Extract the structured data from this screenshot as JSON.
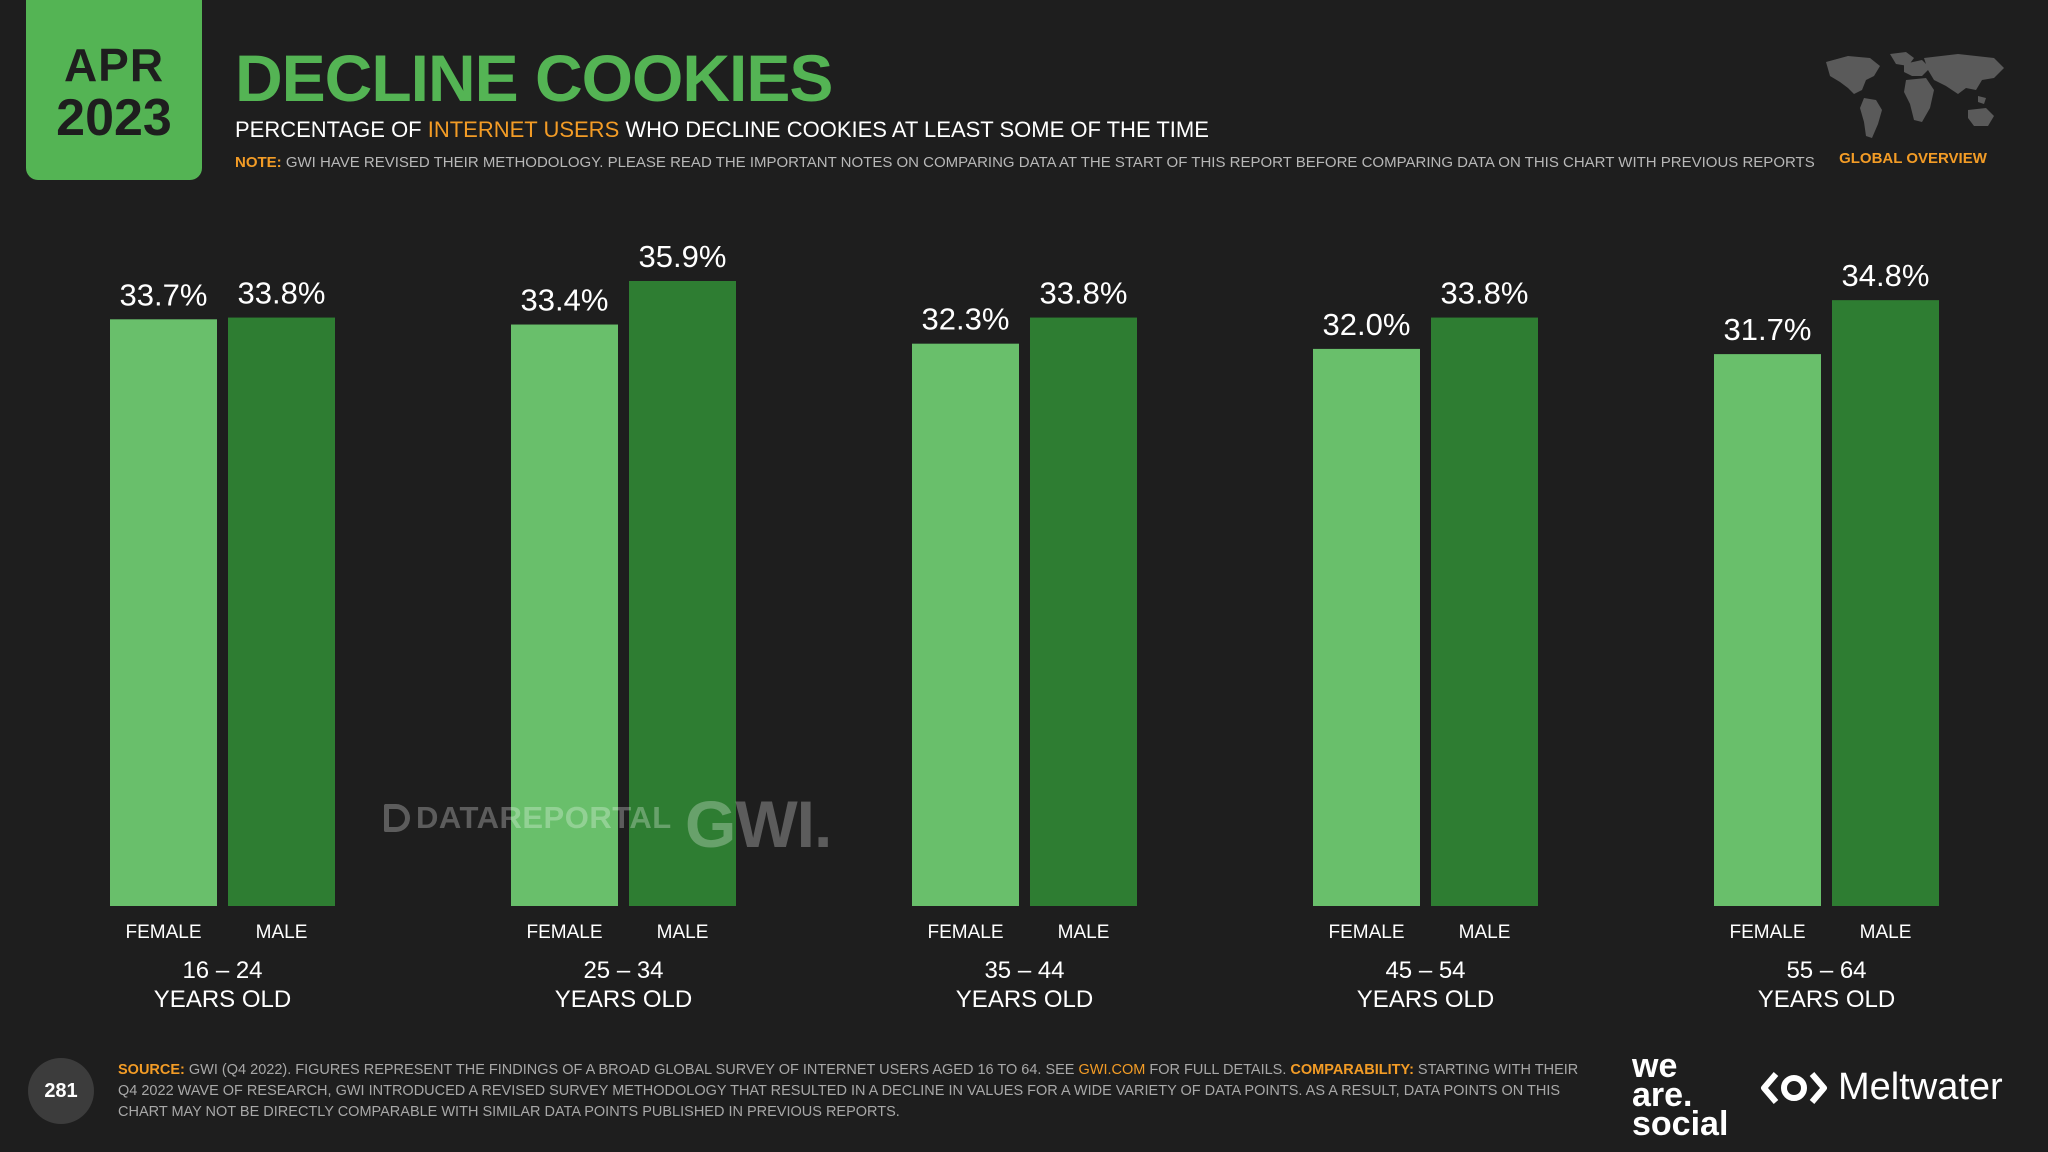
{
  "badge": {
    "month": "APR",
    "year": "2023"
  },
  "header": {
    "title": "DECLINE COOKIES",
    "subtitle_pre": "PERCENTAGE OF ",
    "subtitle_highlight": "INTERNET USERS",
    "subtitle_post": " WHO DECLINE COOKIES AT LEAST SOME OF THE TIME",
    "note_label": "NOTE:",
    "note_text": " GWI HAVE REVISED THEIR METHODOLOGY. PLEASE READ THE IMPORTANT NOTES ON COMPARING DATA AT THE START OF THIS REPORT BEFORE COMPARING DATA ON THIS CHART WITH PREVIOUS REPORTS",
    "section": "GLOBAL OVERVIEW"
  },
  "chart_data": {
    "type": "bar",
    "title": "DECLINE COOKIES",
    "categories": [
      "16 – 24|YEARS OLD",
      "25 – 34|YEARS OLD",
      "35 – 44|YEARS OLD",
      "45 – 54|YEARS OLD",
      "55 – 64|YEARS OLD"
    ],
    "series": [
      {
        "name": "FEMALE",
        "values": [
          33.7,
          33.4,
          32.3,
          32.0,
          31.7
        ]
      },
      {
        "name": "MALE",
        "values": [
          33.8,
          35.9,
          33.8,
          33.8,
          34.8
        ]
      }
    ],
    "value_suffix": "%",
    "ylim": [
      0,
      35.9
    ],
    "colors": {
      "FEMALE": "#69bf6b",
      "MALE": "#2e7d32"
    }
  },
  "watermarks": {
    "datareportal": "DATAREPORTAL",
    "gwi": "GWI."
  },
  "footer": {
    "page": "281",
    "source_label": "SOURCE:",
    "source_text1": " GWI (Q4 2022). FIGURES REPRESENT THE FINDINGS OF A BROAD GLOBAL SURVEY OF INTERNET USERS AGED 16 TO 64. SEE ",
    "source_link": "GWI.COM",
    "source_text2": " FOR FULL DETAILS. ",
    "comparability_label": "COMPARABILITY:",
    "comparability_text": " STARTING WITH THEIR Q4 2022 WAVE OF RESEARCH, GWI INTRODUCED A REVISED SURVEY METHODOLOGY THAT RESULTED IN A DECLINE IN VALUES FOR A WIDE VARIETY OF DATA POINTS. AS A RESULT, DATA POINTS ON THIS CHART MAY NOT BE DIRECTLY COMPARABLE WITH SIMILAR DATA POINTS PUBLISHED IN PREVIOUS REPORTS.",
    "brand1_line1": "we",
    "brand1_line2": "are.",
    "brand1_line3": "social",
    "brand2": "Meltwater"
  }
}
